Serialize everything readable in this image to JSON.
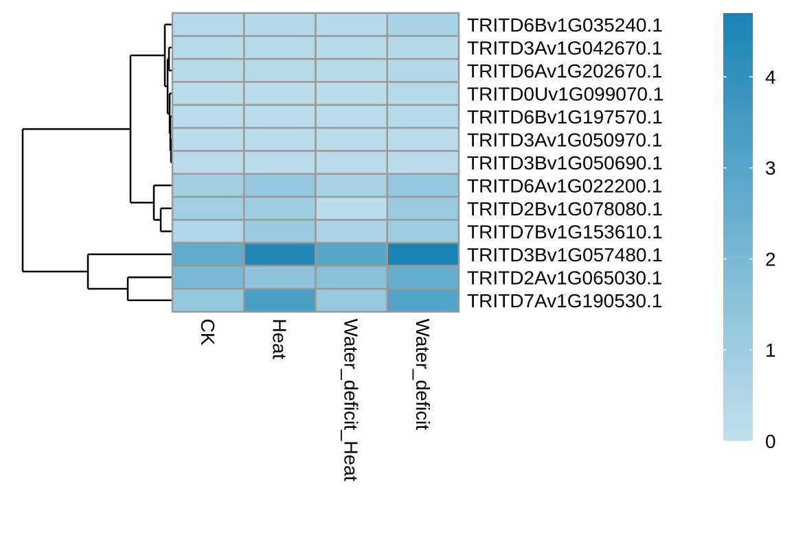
{
  "chart_data": {
    "type": "heatmap",
    "title": "",
    "xlabel": "",
    "ylabel": "",
    "columns": [
      "CK",
      "Heat",
      "Water_deficit_Heat",
      "Water_deficit"
    ],
    "rows": [
      "TRITD6Bv1G035240.1",
      "TRITD3Av1G042670.1",
      "TRITD6Av1G202670.1",
      "TRITD0Uv1G099070.1",
      "TRITD6Bv1G197570.1",
      "TRITD3Av1G050970.1",
      "TRITD3Bv1G050690.1",
      "TRITD6Av1G022200.1",
      "TRITD2Bv1G078080.1",
      "TRITD7Bv1G153610.1",
      "TRITD3Bv1G057480.1",
      "TRITD2Av1G065030.1",
      "TRITD7Av1G190530.1"
    ],
    "values": [
      [
        0.35,
        0.4,
        0.35,
        0.7
      ],
      [
        0.3,
        0.3,
        0.3,
        0.4
      ],
      [
        0.3,
        0.3,
        0.3,
        0.4
      ],
      [
        0.2,
        0.2,
        0.2,
        0.3
      ],
      [
        0.2,
        0.2,
        0.2,
        0.3
      ],
      [
        0.2,
        0.2,
        0.2,
        0.2
      ],
      [
        0.25,
        0.25,
        0.25,
        0.25
      ],
      [
        0.9,
        1.3,
        0.7,
        1.3
      ],
      [
        0.9,
        1.0,
        0.2,
        1.1
      ],
      [
        0.5,
        1.1,
        0.6,
        1.0
      ],
      [
        2.7,
        4.4,
        3.0,
        4.7
      ],
      [
        2.0,
        1.4,
        1.6,
        2.6
      ],
      [
        1.3,
        3.4,
        1.2,
        3.1
      ]
    ],
    "legend": {
      "ticks": [
        0,
        1,
        2,
        3,
        4
      ],
      "range": [
        0,
        4.7
      ],
      "color_low": "#c2e0ed",
      "color_high": "#1a83b4",
      "placement": "right"
    },
    "grid_color": "#999999",
    "dendrogram_color": "#000000"
  }
}
